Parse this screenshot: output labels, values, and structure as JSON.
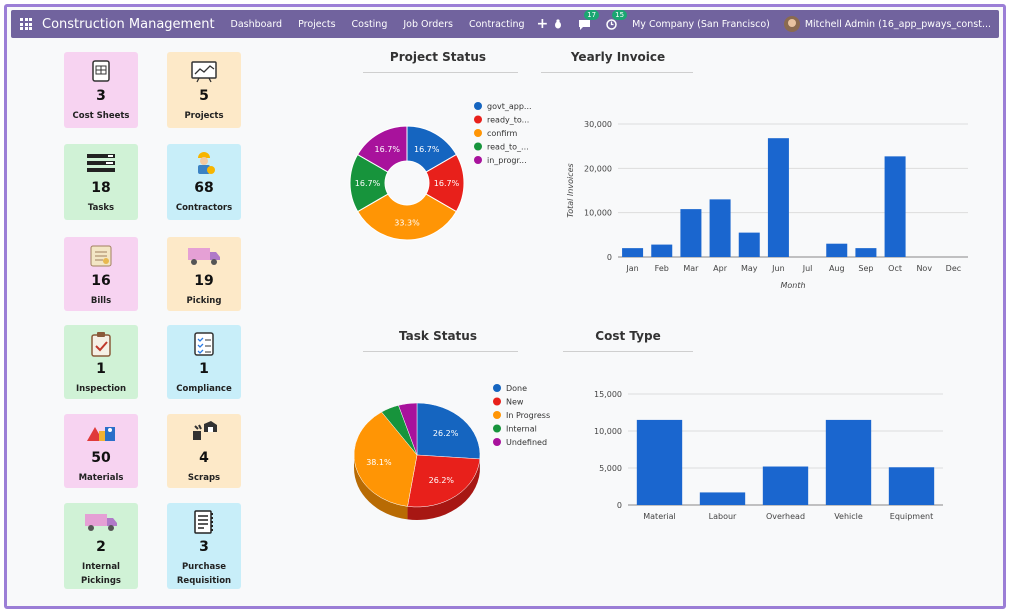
{
  "navbar": {
    "brand": "Construction Management",
    "menus": [
      "Dashboard",
      "Projects",
      "Costing",
      "Job Orders",
      "Contracting"
    ],
    "messages_count": "17",
    "activities_count": "15",
    "company": "My Company (San Francisco)",
    "user": "Mitchell Admin (16_app_pways_const..."
  },
  "cards": [
    {
      "value": "3",
      "label": "Cost Sheets",
      "icon": "cost-sheet-icon",
      "color": "pink"
    },
    {
      "value": "5",
      "label": "Projects",
      "icon": "projects-icon",
      "color": "yellow"
    },
    {
      "value": "18",
      "label": "Tasks",
      "icon": "tasks-icon",
      "color": "green"
    },
    {
      "value": "68",
      "label": "Contractors",
      "icon": "contractor-icon",
      "color": "blue"
    },
    {
      "value": "16",
      "label": "Bills",
      "icon": "bill-icon",
      "color": "pink"
    },
    {
      "value": "19",
      "label": "Picking",
      "icon": "truck-icon",
      "color": "yellow"
    },
    {
      "value": "1",
      "label": "Inspection",
      "icon": "clipboard-check-icon",
      "color": "green"
    },
    {
      "value": "1",
      "label": "Compliance",
      "icon": "checklist-icon",
      "color": "blue"
    },
    {
      "value": "50",
      "label": "Materials",
      "icon": "materials-icon",
      "color": "pink"
    },
    {
      "value": "4",
      "label": "Scraps",
      "icon": "scrap-icon",
      "color": "yellow"
    },
    {
      "value": "2",
      "label": "Internal Pickings",
      "icon": "truck-icon",
      "color": "green"
    },
    {
      "value": "3",
      "label": "Purchase Requisition",
      "icon": "requisition-icon",
      "color": "blue"
    }
  ],
  "chart_titles": {
    "project_status": "Project Status",
    "yearly_invoice": "Yearly Invoice",
    "task_status": "Task Status",
    "cost_type": "Cost Type"
  },
  "chart_data": [
    {
      "type": "pie",
      "title": "Project Status",
      "style": "donut",
      "series": [
        {
          "name": "govt_app...",
          "value": 16.7,
          "color": "#1565c0"
        },
        {
          "name": "ready_to...",
          "value": 16.7,
          "color": "#e8201b"
        },
        {
          "name": "confirm",
          "value": 33.3,
          "color": "#ff9505"
        },
        {
          "name": "read_to_...",
          "value": 16.7,
          "color": "#17943c"
        },
        {
          "name": "in_progr...",
          "value": 16.7,
          "color": "#a8129c"
        }
      ],
      "slice_labels": [
        "16.7%",
        "16.7%",
        "33.3%",
        "16.7%",
        "16.7%"
      ],
      "legend": "right"
    },
    {
      "type": "bar",
      "title": "Yearly Invoice",
      "categories": [
        "Jan",
        "Feb",
        "Mar",
        "Apr",
        "May",
        "Jun",
        "Jul",
        "Aug",
        "Sep",
        "Oct",
        "Nov",
        "Dec"
      ],
      "values": [
        2000,
        2800,
        10800,
        13000,
        5500,
        26800,
        0,
        3000,
        2000,
        22700,
        0,
        0
      ],
      "xlabel": "Month",
      "ylabel": "Total Invoices",
      "ylim": [
        0,
        30000
      ],
      "yticks": [
        "0",
        "10,000",
        "20,000",
        "30,000"
      ],
      "grid": true,
      "color": "#1a66cf"
    },
    {
      "type": "pie",
      "title": "Task Status",
      "style": "3d",
      "series": [
        {
          "name": "Done",
          "value": 26.2,
          "color": "#1565c0"
        },
        {
          "name": "New",
          "value": 26.2,
          "color": "#e8201b"
        },
        {
          "name": "In Progress",
          "value": 38.1,
          "color": "#ff9505"
        },
        {
          "name": "Internal",
          "value": 4.75,
          "color": "#17943c"
        },
        {
          "name": "Undefined",
          "value": 4.75,
          "color": "#a8129c"
        }
      ],
      "slice_labels": [
        "26.2%",
        "26.2%",
        "38.1%",
        "",
        ""
      ],
      "legend": "right"
    },
    {
      "type": "bar",
      "title": "Cost Type",
      "categories": [
        "Material",
        "Labour",
        "Overhead",
        "Vehicle",
        "Equipment"
      ],
      "values": [
        11500,
        1700,
        5200,
        11500,
        5100
      ],
      "ylim": [
        0,
        15000
      ],
      "yticks": [
        "0",
        "5,000",
        "10,000",
        "15,000"
      ],
      "grid": true,
      "color": "#1a66cf"
    }
  ]
}
